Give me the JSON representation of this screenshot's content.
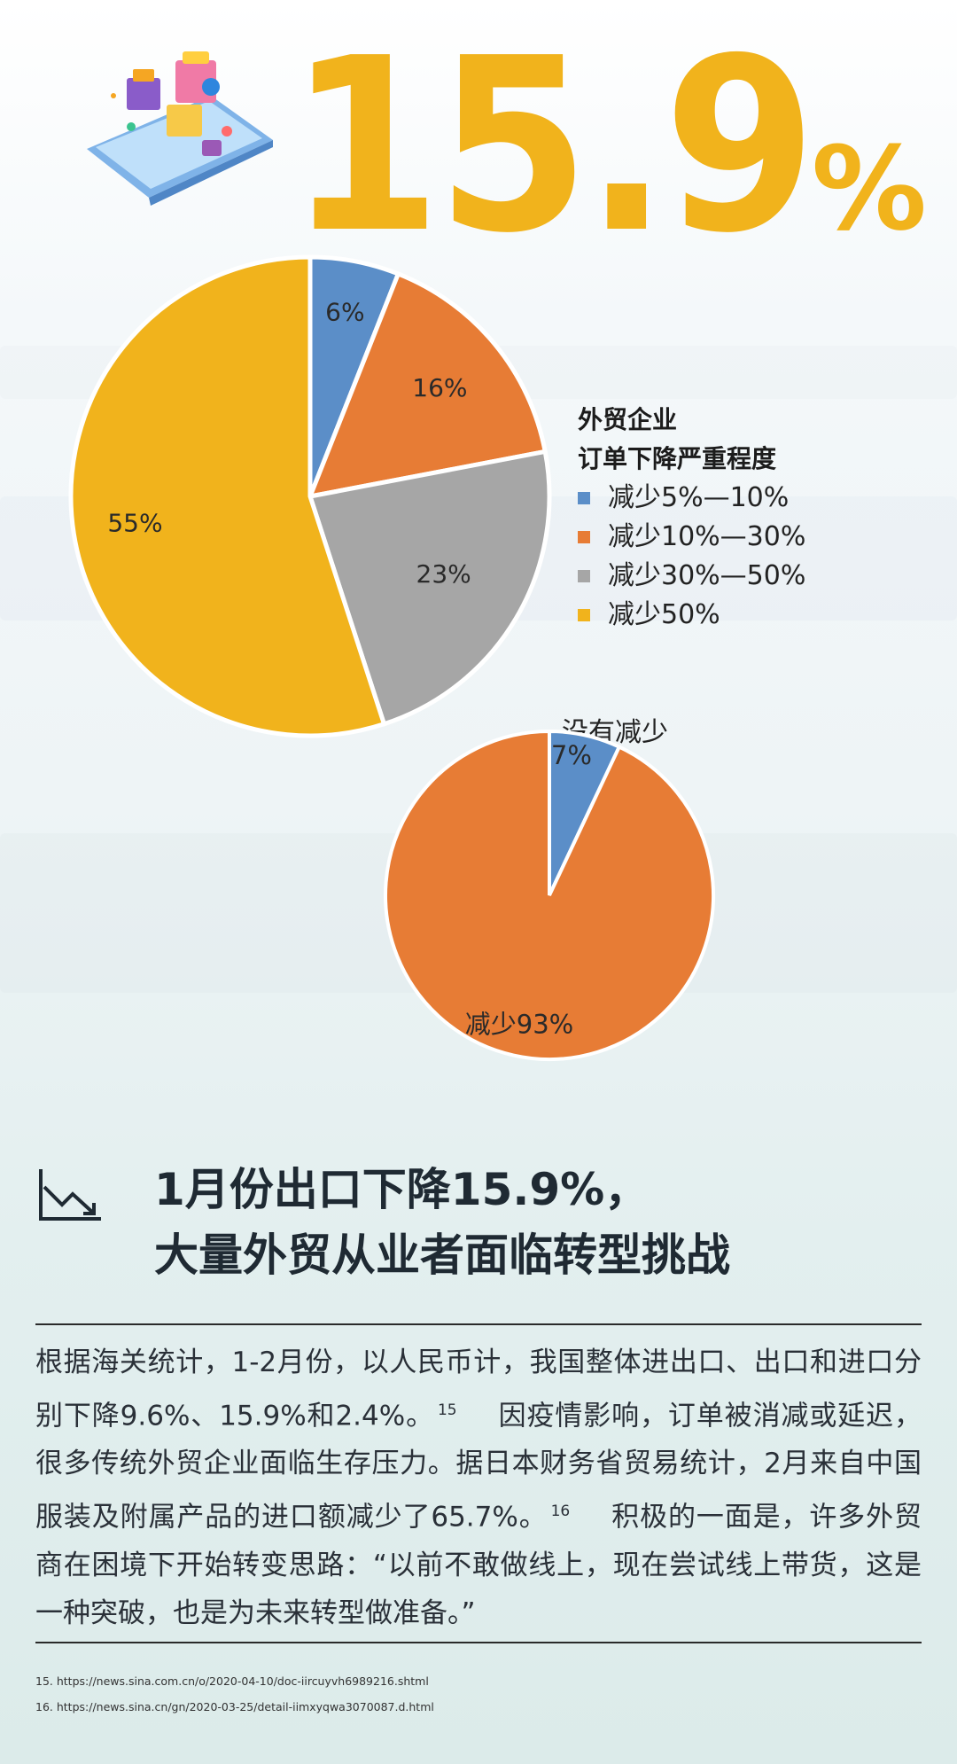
{
  "headline_number": {
    "value": "15.9",
    "unit": "%"
  },
  "colors": {
    "blue": "#5b8ec8",
    "orange": "#e77c35",
    "gray": "#a6a6a6",
    "yellow": "#f1b31c",
    "headline": "#f1b31c"
  },
  "chart_data": [
    {
      "type": "pie",
      "title": "外贸企业 订单下降严重程度",
      "legend_title_lines": [
        "外贸企业",
        "订单下降严重程度"
      ],
      "categories": [
        "减少5%—10%",
        "减少10%—30%",
        "减少30%—50%",
        "减少50%"
      ],
      "values": [
        6,
        16,
        23,
        55
      ],
      "data_labels": [
        "6%",
        "16%",
        "23%",
        "55%"
      ],
      "colors": [
        "#5b8ec8",
        "#e77c35",
        "#a6a6a6",
        "#f1b31c"
      ],
      "legend_placement": "right"
    },
    {
      "type": "pie",
      "categories": [
        "没有减少",
        "减少"
      ],
      "values": [
        7,
        93
      ],
      "data_labels": [
        "7%",
        "减少93%"
      ],
      "top_label": "没有减少",
      "colors": [
        "#5b8ec8",
        "#e77c35"
      ]
    }
  ],
  "section": {
    "icon": "chart-decline-icon",
    "title_line1": "1月份出口下降15.9%，",
    "title_line2": "大量外贸从业者面临转型挑战"
  },
  "body": {
    "part1": "根据海关统计，1-2月份，以人民币计，我国整体进出口、出口和进口分别下降9.6%、15.9%和2.4%。",
    "ref1": "15",
    "part2": "因疫情影响，订单被消减或延迟，很多传统外贸企业面临生存压力。据日本财务省贸易统计，2月来自中国服装及附属产品的进口额减少了65.7%。",
    "ref2": "16",
    "part3": "积极的一面是，许多外贸商在困境下开始转变思路：“以前不敢做线上，现在尝试线上带货，这是一种突破，也是为未来转型做准备。”"
  },
  "footnotes": [
    "15. https://news.sina.com.cn/o/2020-04-10/doc-iircuyvh6989216.shtml",
    "16. https://news.sina.cn/gn/2020-03-25/detail-iimxyqwa3070087.d.html"
  ]
}
